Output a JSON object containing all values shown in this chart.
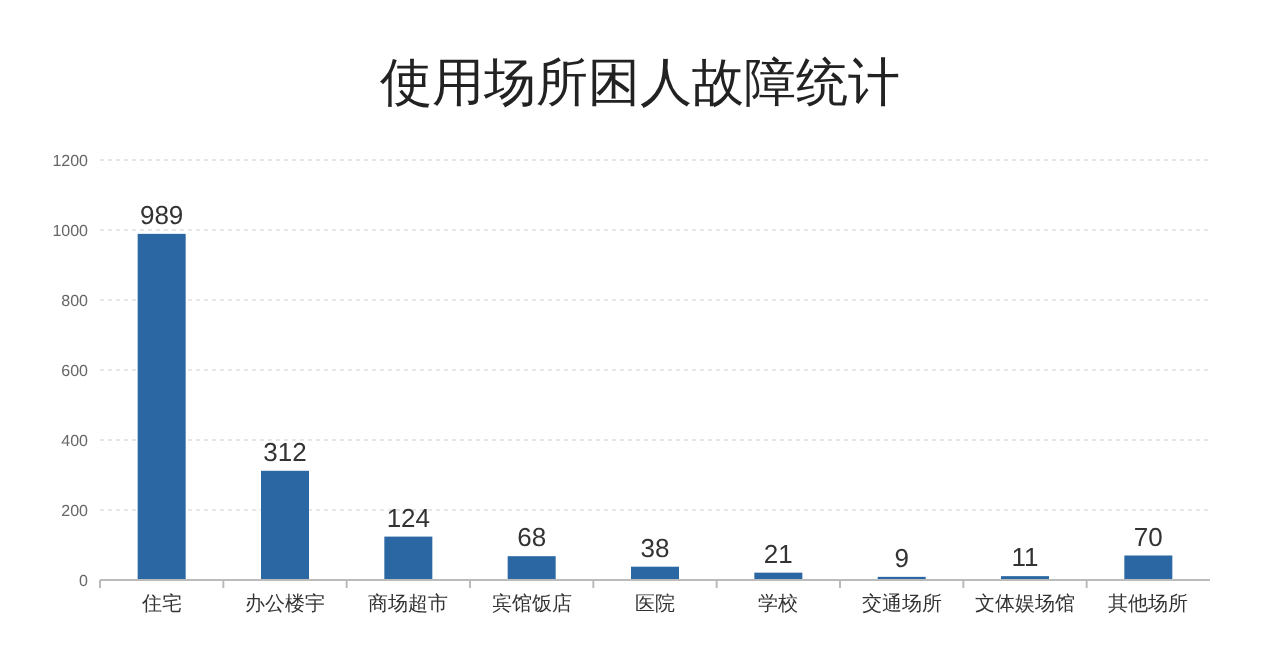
{
  "chart_data": {
    "type": "bar",
    "title": "使用场所困人故障统计",
    "categories": [
      "住宅",
      "办公楼宇",
      "商场超市",
      "宾馆饭店",
      "医院",
      "学校",
      "交通场所",
      "文体娱场馆",
      "其他场所"
    ],
    "values": [
      989,
      312,
      124,
      68,
      38,
      21,
      9,
      11,
      70
    ],
    "color": "#2b67a3",
    "ylim": [
      0,
      1200
    ],
    "yticks": [
      0,
      200,
      400,
      600,
      800,
      1000,
      1200
    ],
    "grid": "y",
    "data_labels": true
  }
}
